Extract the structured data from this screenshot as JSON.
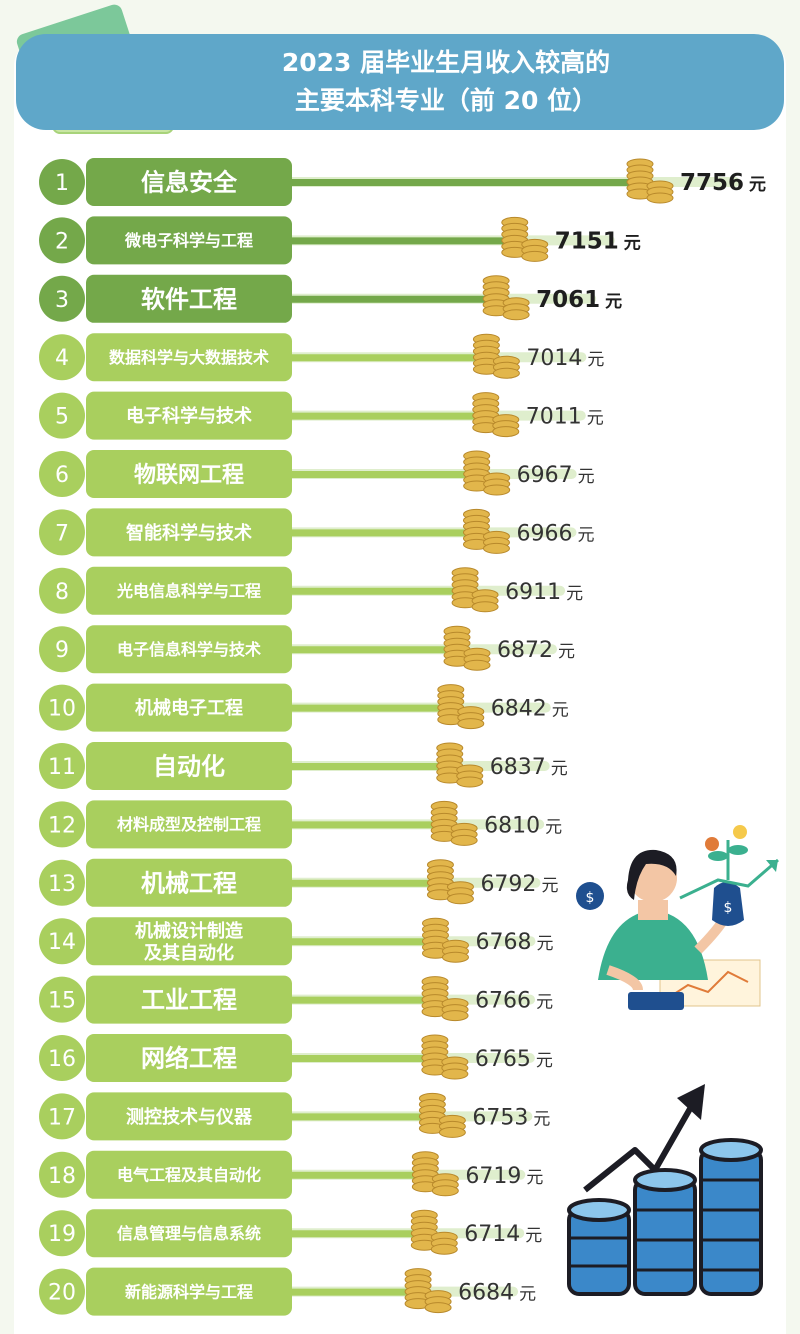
{
  "title_lines": [
    "2023 届毕业生月收入较高的",
    "主要本科专业（前 20 位）"
  ],
  "colors": {
    "dark_green": "#74a84a",
    "light_green": "#a9cf5e",
    "track": "#dfeecd",
    "header_blue": "#5fa7c9",
    "coin": "#e2b64b"
  },
  "chart_data": {
    "type": "bar",
    "unit": "元",
    "categories": [
      "信息安全",
      "微电子科学与工程",
      "软件工程",
      "数据科学与大数据技术",
      "电子科学与技术",
      "物联网工程",
      "智能科学与技术",
      "光电信息科学与工程",
      "电子信息科学与技术",
      "机械电子工程",
      "自动化",
      "材料成型及控制工程",
      "机械工程",
      "机械设计制造\n及其自动化",
      "工业工程",
      "网络工程",
      "测控技术与仪器",
      "电气工程及其自动化",
      "信息管理与信息系统",
      "新能源科学与工程"
    ],
    "ranks": [
      "1",
      "2",
      "3",
      "4",
      "5",
      "6",
      "7",
      "8",
      "9",
      "10",
      "11",
      "12",
      "13",
      "14",
      "15",
      "16",
      "17",
      "18",
      "19",
      "20"
    ],
    "values": [
      7756,
      7151,
      7061,
      7014,
      7011,
      6967,
      6966,
      6911,
      6872,
      6842,
      6837,
      6810,
      6792,
      6768,
      6766,
      6765,
      6753,
      6719,
      6714,
      6684
    ],
    "highlight_top": 3
  }
}
